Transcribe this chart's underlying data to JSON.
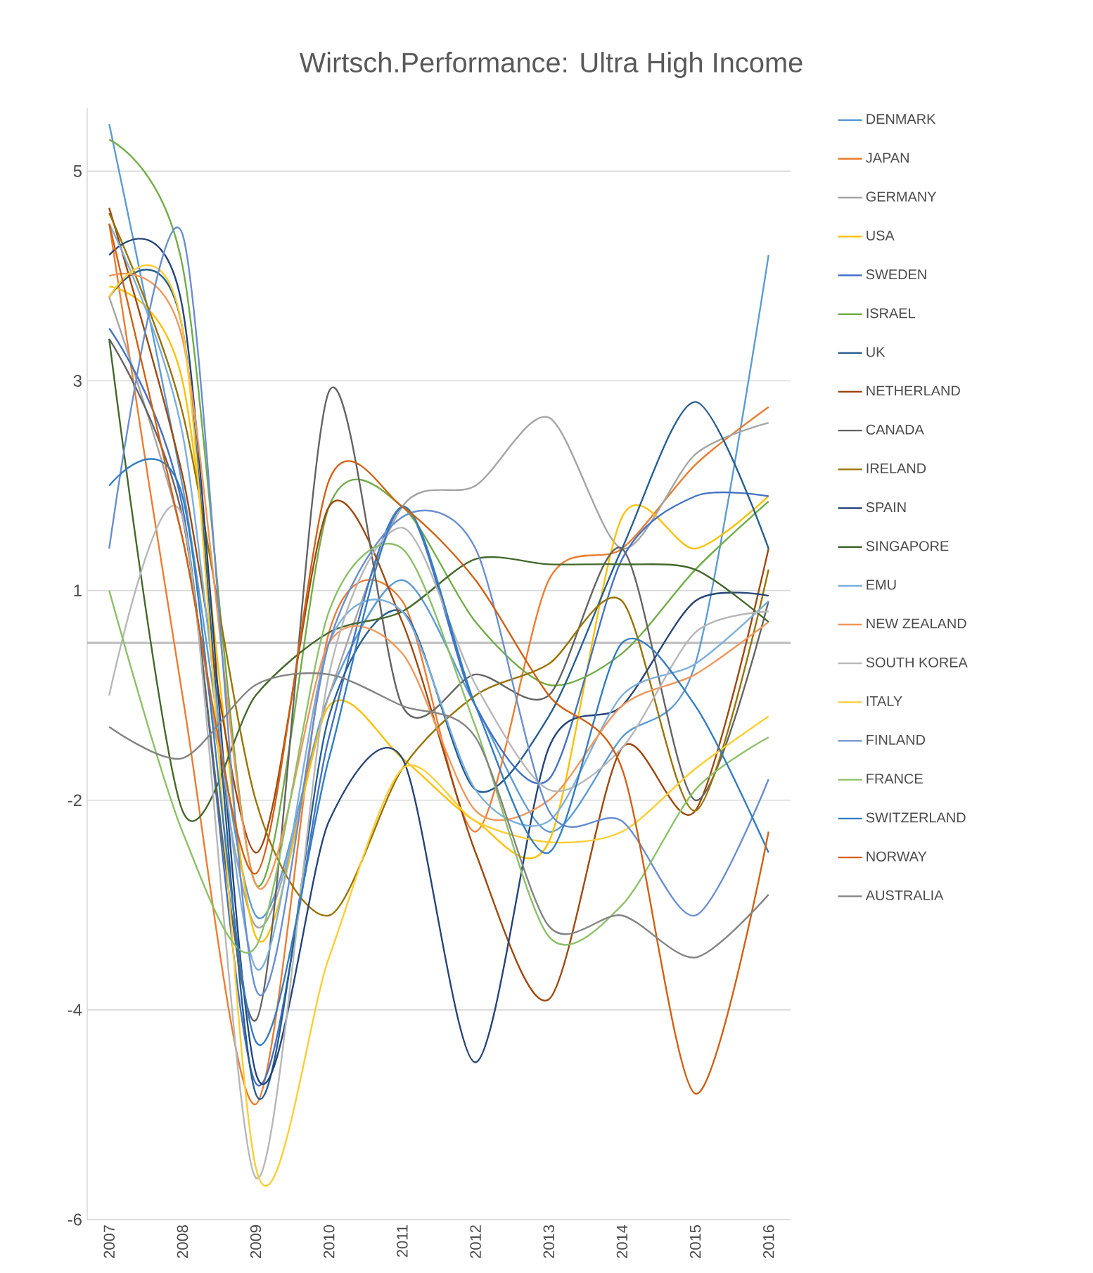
{
  "chart_data": {
    "type": "line",
    "title": "Wirtsch.Performance: Ultra High Income",
    "categories": [
      "2007",
      "2008",
      "2009",
      "2010",
      "2011",
      "2012",
      "2013",
      "2014",
      "2015",
      "2016"
    ],
    "series": [
      {
        "name": "DENMARK",
        "color": "#5b9bd5",
        "values": [
          4.95,
          1.5,
          -2.6,
          -0.5,
          0.6,
          -0.6,
          -1.8,
          -0.9,
          -0.2,
          3.7
        ]
      },
      {
        "name": "JAPAN",
        "color": "#ed7d31",
        "values": [
          4.0,
          -0.5,
          -4.4,
          0.1,
          0.4,
          -1.8,
          0.6,
          0.9,
          1.7,
          2.25
        ]
      },
      {
        "name": "GERMANY",
        "color": "#a5a5a5",
        "values": [
          3.3,
          1.0,
          -2.7,
          -0.5,
          1.3,
          1.5,
          2.15,
          0.9,
          1.8,
          2.1
        ]
      },
      {
        "name": "USA",
        "color": "#ffc000",
        "values": [
          3.4,
          2.5,
          -2.8,
          -0.6,
          -1.1,
          -1.7,
          -1.9,
          1.2,
          0.9,
          1.4
        ]
      },
      {
        "name": "SWEDEN",
        "color": "#4472c4",
        "values": [
          3.0,
          1.3,
          -4.2,
          -0.9,
          1.3,
          -0.6,
          -1.3,
          0.8,
          1.4,
          1.4
        ]
      },
      {
        "name": "ISRAEL",
        "color": "#70ad47",
        "values": [
          4.8,
          3.6,
          -2.3,
          1.3,
          1.3,
          0.2,
          -0.4,
          -0.1,
          0.7,
          1.35
        ]
      },
      {
        "name": "UK",
        "color": "#255e91",
        "values": [
          3.3,
          3.0,
          -4.3,
          -0.7,
          0.3,
          -1.4,
          -0.7,
          0.9,
          2.3,
          0.9
        ]
      },
      {
        "name": "NETHERLAND",
        "color": "#9e480e",
        "values": [
          4.15,
          1.6,
          -2.0,
          1.3,
          0.2,
          -2.0,
          -3.4,
          -1.0,
          -1.6,
          0.9
        ]
      },
      {
        "name": "CANADA",
        "color": "#636363",
        "values": [
          2.9,
          1.2,
          -3.6,
          2.4,
          -0.6,
          -0.3,
          -0.5,
          0.9,
          -1.5,
          0.4
        ]
      },
      {
        "name": "IRELAND",
        "color": "#997300",
        "values": [
          4.1,
          2.2,
          -1.5,
          -2.6,
          -1.2,
          -0.5,
          -0.2,
          0.4,
          -1.6,
          0.7
        ]
      },
      {
        "name": "SPAIN",
        "color": "#264478",
        "values": [
          3.7,
          3.2,
          -4.1,
          -1.7,
          -1.1,
          -4.0,
          -1.0,
          -0.6,
          0.4,
          0.45
        ]
      },
      {
        "name": "SINGAPORE",
        "color": "#43682b",
        "values": [
          2.9,
          -1.6,
          -0.5,
          0.1,
          0.3,
          0.8,
          0.75,
          0.75,
          0.7,
          0.2
        ]
      },
      {
        "name": "EMU",
        "color": "#7cafdd",
        "values": [
          4.0,
          2.0,
          -3.1,
          0.0,
          0.3,
          -1.4,
          -1.7,
          -0.5,
          -0.2,
          0.4
        ]
      },
      {
        "name": "NEW ZEALAND",
        "color": "#f1975a",
        "values": [
          3.5,
          2.9,
          -2.3,
          0.0,
          -0.1,
          -1.6,
          -1.5,
          -0.6,
          -0.3,
          0.2
        ]
      },
      {
        "name": "SOUTH KOREA",
        "color": "#b7b7b7",
        "values": [
          -0.5,
          1.2,
          -5.1,
          -0.3,
          1.1,
          -0.4,
          -1.4,
          -1.0,
          0.1,
          0.3
        ]
      },
      {
        "name": "ITALY",
        "color": "#ffcd33",
        "values": [
          3.3,
          3.0,
          -5.0,
          -3.0,
          -1.2,
          -1.7,
          -1.9,
          -1.8,
          -1.2,
          -0.7
        ]
      },
      {
        "name": "FINLAND",
        "color": "#698ed0",
        "values": [
          0.9,
          3.9,
          -3.3,
          0.0,
          1.2,
          0.9,
          -1.6,
          -1.7,
          -2.6,
          -1.3
        ]
      },
      {
        "name": "FRANCE",
        "color": "#8cc168",
        "values": [
          0.5,
          -1.8,
          -2.9,
          0.3,
          0.9,
          -0.8,
          -2.8,
          -2.5,
          -1.4,
          -0.9
        ]
      },
      {
        "name": "SWITZERLAND",
        "color": "#327dc2",
        "values": [
          1.5,
          1.4,
          -3.8,
          -1.1,
          1.3,
          -0.6,
          -2.0,
          0.0,
          -0.6,
          -2.0
        ]
      },
      {
        "name": "NORWAY",
        "color": "#d26012",
        "values": [
          4.0,
          1.0,
          -2.2,
          1.55,
          1.3,
          0.6,
          -0.5,
          -1.2,
          -4.3,
          -1.8
        ]
      },
      {
        "name": "AUSTRALIA",
        "color": "#848484",
        "values": [
          -0.8,
          -1.1,
          -0.4,
          -0.3,
          -0.6,
          -0.9,
          -2.7,
          -2.6,
          -3.0,
          -2.4
        ]
      }
    ],
    "ylim": [
      -5.5,
      5.1
    ],
    "yticks": [
      {
        "value": 4.5,
        "label": "5"
      },
      {
        "value": 2.5,
        "label": "3"
      },
      {
        "value": 0.5,
        "label": "1"
      },
      {
        "value": -1.5,
        "label": "-2"
      },
      {
        "value": -3.5,
        "label": "-4"
      },
      {
        "value": -5.5,
        "label": "-6"
      }
    ],
    "ref_lines": [
      {
        "axis": "y",
        "value": 0,
        "color": "#bfbfbf"
      }
    ],
    "grid": "y",
    "legend": "right",
    "marker": "none",
    "line_style": "solid"
  }
}
